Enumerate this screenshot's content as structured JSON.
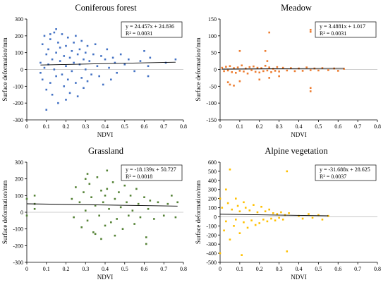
{
  "chart_data": [
    {
      "type": "scatter",
      "title": "Coniferous forest",
      "xlabel": "NDVI",
      "ylabel": "Surface deformation/mm",
      "xlim": [
        0,
        0.8
      ],
      "ylim": [
        -300,
        300
      ],
      "xticks": [
        "0",
        "0.1",
        "0.2",
        "0.3",
        "0.4",
        "0.5",
        "0.6",
        "0.7",
        "0.8"
      ],
      "yticks": [
        "300",
        "200",
        "100",
        "0",
        "-100",
        "-200",
        "-300"
      ],
      "color": "#4472C4",
      "trendline": {
        "slope": 24.457,
        "intercept": 24.836
      },
      "equation": "y = 24.457x + 24.836",
      "r2": "R² = 0.0031",
      "points": [
        [
          0.07,
          40
        ],
        [
          0.07,
          -20
        ],
        [
          0.08,
          150
        ],
        [
          0.08,
          -60
        ],
        [
          0.09,
          200
        ],
        [
          0.09,
          10
        ],
        [
          0.1,
          90
        ],
        [
          0.1,
          -120
        ],
        [
          0.11,
          120
        ],
        [
          0.11,
          30
        ],
        [
          0.12,
          180
        ],
        [
          0.12,
          -80
        ],
        [
          0.13,
          60
        ],
        [
          0.13,
          -150
        ],
        [
          0.14,
          220
        ],
        [
          0.14,
          0
        ],
        [
          0.15,
          100
        ],
        [
          0.15,
          -40
        ],
        [
          0.16,
          160
        ],
        [
          0.16,
          -200
        ],
        [
          0.17,
          50
        ],
        [
          0.17,
          130
        ],
        [
          0.18,
          -30
        ],
        [
          0.18,
          210
        ],
        [
          0.19,
          80
        ],
        [
          0.19,
          -100
        ],
        [
          0.2,
          140
        ],
        [
          0.2,
          20
        ],
        [
          0.21,
          -60
        ],
        [
          0.21,
          190
        ],
        [
          0.22,
          70
        ],
        [
          0.22,
          -140
        ],
        [
          0.23,
          110
        ],
        [
          0.23,
          -10
        ],
        [
          0.24,
          160
        ],
        [
          0.24,
          40
        ],
        [
          0.25,
          -80
        ],
        [
          0.25,
          200
        ],
        [
          0.26,
          90
        ],
        [
          0.26,
          -160
        ],
        [
          0.27,
          30
        ],
        [
          0.27,
          120
        ],
        [
          0.28,
          -50
        ],
        [
          0.28,
          170
        ],
        [
          0.29,
          60
        ],
        [
          0.29,
          -110
        ],
        [
          0.3,
          100
        ],
        [
          0.3,
          0
        ],
        [
          0.31,
          140
        ],
        [
          0.31,
          -70
        ],
        [
          0.32,
          50
        ],
        [
          0.33,
          -30
        ],
        [
          0.34,
          90
        ],
        [
          0.35,
          150
        ],
        [
          0.36,
          20
        ],
        [
          0.37,
          -40
        ],
        [
          0.38,
          80
        ],
        [
          0.39,
          -90
        ],
        [
          0.4,
          60
        ],
        [
          0.41,
          120
        ],
        [
          0.42,
          10
        ],
        [
          0.43,
          -60
        ],
        [
          0.44,
          70
        ],
        [
          0.45,
          40
        ],
        [
          0.46,
          -20
        ],
        [
          0.48,
          90
        ],
        [
          0.5,
          30
        ],
        [
          0.52,
          60
        ],
        [
          0.55,
          -10
        ],
        [
          0.58,
          50
        ],
        [
          0.6,
          110
        ],
        [
          0.62,
          20
        ],
        [
          0.62,
          -40
        ],
        [
          0.63,
          70
        ],
        [
          0.71,
          40
        ],
        [
          0.76,
          60
        ],
        [
          0.1,
          -240
        ],
        [
          0.15,
          240
        ],
        [
          0.2,
          -180
        ],
        [
          0.12,
          210
        ]
      ]
    },
    {
      "type": "scatter",
      "title": "Meadow",
      "xlabel": "NDVI",
      "ylabel": "Surface deformation/mm",
      "xlim": [
        0,
        0.8
      ],
      "ylim": [
        -150,
        150
      ],
      "xticks": [
        "0",
        "0.1",
        "0.2",
        "0.3",
        "0.4",
        "0.5",
        "0.6",
        "0.7",
        "0.8"
      ],
      "yticks": [
        "150",
        "100",
        "50",
        "0",
        "-50",
        "-100",
        "-150"
      ],
      "color": "#ED7D31",
      "trendline": {
        "slope": 3.4881,
        "intercept": 1.017
      },
      "equation": "y = 3.4881x + 1.017",
      "r2": "R² = 0.0031",
      "points": [
        [
          0.01,
          5
        ],
        [
          0.02,
          -5
        ],
        [
          0.03,
          8
        ],
        [
          0.04,
          -3
        ],
        [
          0.05,
          10
        ],
        [
          0.06,
          -8
        ],
        [
          0.07,
          4
        ],
        [
          0.08,
          -10
        ],
        [
          0.09,
          6
        ],
        [
          0.1,
          -4
        ],
        [
          0.11,
          12
        ],
        [
          0.12,
          -6
        ],
        [
          0.13,
          3
        ],
        [
          0.14,
          -12
        ],
        [
          0.15,
          7
        ],
        [
          0.16,
          -2
        ],
        [
          0.17,
          9
        ],
        [
          0.18,
          -7
        ],
        [
          0.19,
          5
        ],
        [
          0.2,
          -9
        ],
        [
          0.21,
          4
        ],
        [
          0.22,
          -5
        ],
        [
          0.23,
          11
        ],
        [
          0.24,
          -3
        ],
        [
          0.25,
          6
        ],
        [
          0.26,
          -8
        ],
        [
          0.27,
          2
        ],
        [
          0.28,
          -4
        ],
        [
          0.29,
          7
        ],
        [
          0.3,
          -6
        ],
        [
          0.32,
          5
        ],
        [
          0.34,
          -3
        ],
        [
          0.36,
          4
        ],
        [
          0.38,
          -5
        ],
        [
          0.4,
          3
        ],
        [
          0.42,
          -4
        ],
        [
          0.44,
          6
        ],
        [
          0.46,
          -2
        ],
        [
          0.48,
          3
        ],
        [
          0.5,
          -3
        ],
        [
          0.52,
          4
        ],
        [
          0.55,
          -2
        ],
        [
          0.58,
          3
        ],
        [
          0.6,
          -4
        ],
        [
          0.63,
          2
        ],
        [
          0.25,
          110
        ],
        [
          0.23,
          55
        ],
        [
          0.46,
          118
        ],
        [
          0.46,
          112
        ],
        [
          0.1,
          55
        ],
        [
          0.46,
          -55
        ],
        [
          0.46,
          -65
        ],
        [
          0.05,
          -45
        ],
        [
          0.1,
          -35
        ],
        [
          0.2,
          -30
        ],
        [
          0.3,
          -20
        ],
        [
          0.25,
          -25
        ],
        [
          0.07,
          -48
        ],
        [
          0.04,
          -38
        ],
        [
          0.24,
          25
        ]
      ]
    },
    {
      "type": "scatter",
      "title": "Grassland",
      "xlabel": "NDVI",
      "ylabel": "Surface deformation/mm",
      "xlim": [
        0,
        0.8
      ],
      "ylim": [
        -300,
        300
      ],
      "xticks": [
        "0",
        "0.1",
        "0.2",
        "0.3",
        "0.4",
        "0.5",
        "0.6",
        "0.7",
        "0.8"
      ],
      "yticks": [
        "300",
        "200",
        "100",
        "0",
        "-100",
        "-200",
        "-300"
      ],
      "color": "#548235",
      "trendline": {
        "slope": -18.139,
        "intercept": 50.727
      },
      "equation": "y = -18.139x + 50.727",
      "r2": "R² = 0.0018",
      "points": [
        [
          0.0,
          80
        ],
        [
          0.0,
          -20
        ],
        [
          0.04,
          100
        ],
        [
          0.04,
          50
        ],
        [
          0.04,
          20
        ],
        [
          0.23,
          80
        ],
        [
          0.24,
          -30
        ],
        [
          0.25,
          150
        ],
        [
          0.27,
          60
        ],
        [
          0.28,
          -90
        ],
        [
          0.29,
          120
        ],
        [
          0.3,
          200
        ],
        [
          0.3,
          10
        ],
        [
          0.31,
          -50
        ],
        [
          0.32,
          170
        ],
        [
          0.33,
          90
        ],
        [
          0.34,
          -120
        ],
        [
          0.35,
          40
        ],
        [
          0.36,
          210
        ],
        [
          0.37,
          -20
        ],
        [
          0.38,
          130
        ],
        [
          0.39,
          60
        ],
        [
          0.4,
          -80
        ],
        [
          0.41,
          250
        ],
        [
          0.41,
          140
        ],
        [
          0.42,
          20
        ],
        [
          0.43,
          -60
        ],
        [
          0.44,
          180
        ],
        [
          0.45,
          80
        ],
        [
          0.46,
          -40
        ],
        [
          0.47,
          120
        ],
        [
          0.48,
          30
        ],
        [
          0.49,
          -100
        ],
        [
          0.5,
          160
        ],
        [
          0.51,
          60
        ],
        [
          0.52,
          -20
        ],
        [
          0.53,
          100
        ],
        [
          0.54,
          10
        ],
        [
          0.55,
          -70
        ],
        [
          0.56,
          140
        ],
        [
          0.57,
          50
        ],
        [
          0.58,
          -30
        ],
        [
          0.6,
          90
        ],
        [
          0.61,
          -150
        ],
        [
          0.61,
          -190
        ],
        [
          0.62,
          20
        ],
        [
          0.63,
          70
        ],
        [
          0.65,
          -40
        ],
        [
          0.67,
          60
        ],
        [
          0.7,
          -20
        ],
        [
          0.72,
          50
        ],
        [
          0.74,
          100
        ],
        [
          0.76,
          -30
        ],
        [
          0.77,
          60
        ],
        [
          0.38,
          -160
        ],
        [
          0.31,
          230
        ],
        [
          0.45,
          -140
        ],
        [
          0.52,
          200
        ],
        [
          0.4,
          100
        ],
        [
          0.35,
          -130
        ]
      ]
    },
    {
      "type": "scatter",
      "title": "Alpine vegetation",
      "xlabel": "NDVI",
      "ylabel": "Surface deformation/mm",
      "xlim": [
        0,
        0.8
      ],
      "ylim": [
        -500,
        600
      ],
      "xticks": [
        "0",
        "0.1",
        "0.2",
        "0.3",
        "0.4",
        "0.5",
        "0.6",
        "0.7",
        "0.8"
      ],
      "yticks": [
        "600",
        "500",
        "400",
        "300",
        "200",
        "100",
        "0",
        "-100",
        "-200",
        "-300",
        "-400",
        "-500"
      ],
      "color": "#FFC000",
      "trendline": {
        "slope": -31.688,
        "intercept": 28.625
      },
      "equation": "y = -31.688x + 28.625",
      "r2": "R² = 0.0037",
      "points": [
        [
          0.0,
          -400
        ],
        [
          0.0,
          200
        ],
        [
          0.01,
          100
        ],
        [
          0.02,
          -150
        ],
        [
          0.03,
          300
        ],
        [
          0.03,
          -50
        ],
        [
          0.04,
          150
        ],
        [
          0.05,
          -250
        ],
        [
          0.05,
          520
        ],
        [
          0.06,
          80
        ],
        [
          0.07,
          -100
        ],
        [
          0.08,
          200
        ],
        [
          0.08,
          -30
        ],
        [
          0.09,
          120
        ],
        [
          0.1,
          -180
        ],
        [
          0.1,
          60
        ],
        [
          0.11,
          -420
        ],
        [
          0.12,
          160
        ],
        [
          0.12,
          -60
        ],
        [
          0.13,
          100
        ],
        [
          0.14,
          -120
        ],
        [
          0.15,
          70
        ],
        [
          0.16,
          -40
        ],
        [
          0.17,
          130
        ],
        [
          0.18,
          -90
        ],
        [
          0.19,
          50
        ],
        [
          0.2,
          -70
        ],
        [
          0.21,
          110
        ],
        [
          0.22,
          -30
        ],
        [
          0.23,
          60
        ],
        [
          0.24,
          -50
        ],
        [
          0.25,
          80
        ],
        [
          0.26,
          -20
        ],
        [
          0.27,
          40
        ],
        [
          0.28,
          -40
        ],
        [
          0.29,
          30
        ],
        [
          0.3,
          -10
        ],
        [
          0.31,
          50
        ],
        [
          0.32,
          -30
        ],
        [
          0.33,
          20
        ],
        [
          0.34,
          -380
        ],
        [
          0.34,
          500
        ],
        [
          0.35,
          40
        ],
        [
          0.4,
          10
        ],
        [
          0.42,
          -20
        ],
        [
          0.45,
          30
        ],
        [
          0.47,
          -10
        ],
        [
          0.5,
          20
        ],
        [
          0.52,
          -30
        ],
        [
          0.55,
          10
        ]
      ]
    }
  ]
}
